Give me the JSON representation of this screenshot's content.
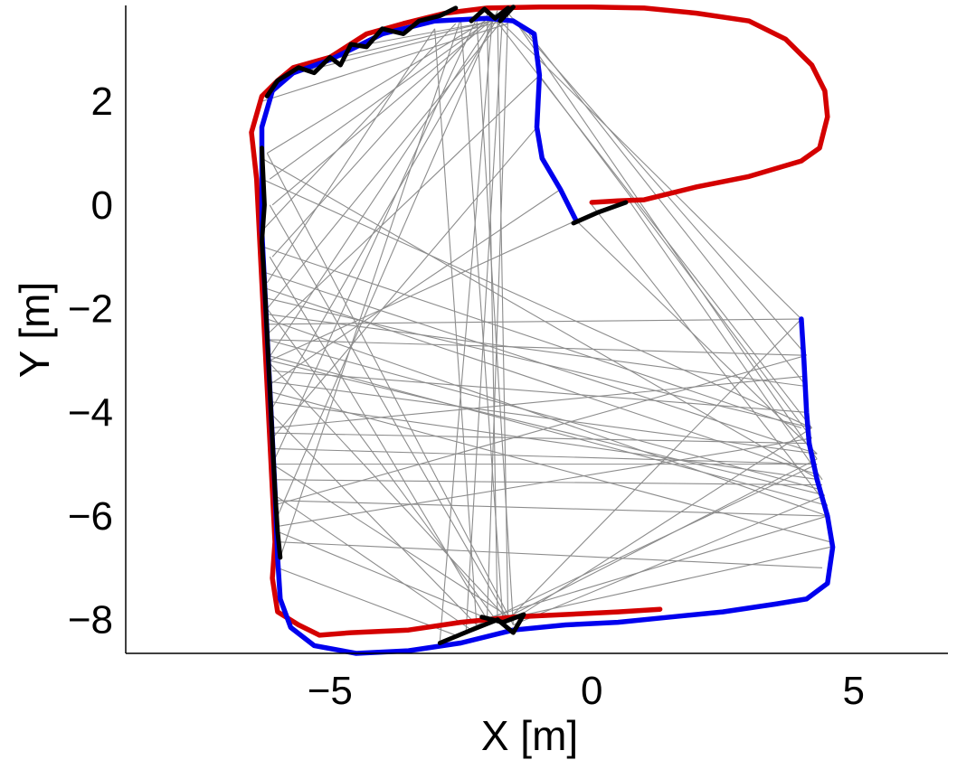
{
  "chart_data": {
    "type": "line",
    "title": "",
    "xlabel": "X [m]",
    "ylabel": "Y [m]",
    "xlim": [
      -8.9,
      6.8
    ],
    "ylim": [
      -8.65,
      3.85
    ],
    "xticks": [
      -5,
      0,
      5
    ],
    "xtick_labels": [
      "−5",
      "0",
      "5"
    ],
    "yticks": [
      -8,
      -6,
      -4,
      -2,
      0,
      2
    ],
    "ytick_labels": [
      "−8",
      "−6",
      "−4",
      "−2",
      "0",
      "2"
    ],
    "grid": false,
    "colors": {
      "red_trajectory": "#d40000",
      "blue_trajectory": "#0000ee",
      "loop_matches": "#000000",
      "correspondences": "#8c8c8c"
    },
    "series": [
      {
        "color": "#d40000",
        "points": [
          [
            1.3,
            -7.8
          ],
          [
            0.5,
            -7.85
          ],
          [
            -0.5,
            -7.9
          ],
          [
            -1.5,
            -7.95
          ],
          [
            -2.5,
            -8.05
          ],
          [
            -3.5,
            -8.2
          ],
          [
            -4.6,
            -8.25
          ],
          [
            -5.2,
            -8.3
          ],
          [
            -5.6,
            -8.1
          ],
          [
            -6.0,
            -7.85
          ],
          [
            -6.1,
            -7.2
          ],
          [
            -6.05,
            -6.5
          ],
          [
            -6.1,
            -5.5
          ],
          [
            -6.15,
            -4.5
          ],
          [
            -6.2,
            -3.5
          ],
          [
            -6.25,
            -2.5
          ],
          [
            -6.3,
            -1.5
          ],
          [
            -6.35,
            -0.5
          ],
          [
            -6.4,
            0.5
          ],
          [
            -6.5,
            1.4
          ],
          [
            -6.3,
            2.1
          ],
          [
            -6.0,
            2.4
          ],
          [
            -5.7,
            2.65
          ],
          [
            -5.0,
            2.85
          ],
          [
            -4.3,
            3.3
          ],
          [
            -3.6,
            3.5
          ],
          [
            -2.8,
            3.7
          ],
          [
            -2.0,
            3.8
          ],
          [
            -1.0,
            3.82
          ],
          [
            0.0,
            3.82
          ],
          [
            1.0,
            3.8
          ],
          [
            2.0,
            3.7
          ],
          [
            3.0,
            3.55
          ],
          [
            3.7,
            3.2
          ],
          [
            4.2,
            2.7
          ],
          [
            4.45,
            2.2
          ],
          [
            4.5,
            1.7
          ],
          [
            4.35,
            1.1
          ],
          [
            4.0,
            0.85
          ],
          [
            3.0,
            0.55
          ],
          [
            2.0,
            0.35
          ],
          [
            1.0,
            0.1
          ],
          [
            0.5,
            0.08
          ],
          [
            0.0,
            0.05
          ]
        ]
      },
      {
        "color": "#0000ee",
        "points": [
          [
            4.0,
            -2.2
          ],
          [
            4.05,
            -3.0
          ],
          [
            4.1,
            -4.0
          ],
          [
            4.15,
            -4.6
          ],
          [
            4.3,
            -5.3
          ],
          [
            4.5,
            -6.0
          ],
          [
            4.6,
            -6.6
          ],
          [
            4.5,
            -7.3
          ],
          [
            4.1,
            -7.6
          ],
          [
            3.5,
            -7.7
          ],
          [
            2.5,
            -7.85
          ],
          [
            1.5,
            -7.95
          ],
          [
            0.5,
            -8.05
          ],
          [
            -0.5,
            -8.1
          ],
          [
            -1.5,
            -8.2
          ],
          [
            -2.5,
            -8.45
          ],
          [
            -3.5,
            -8.6
          ],
          [
            -4.5,
            -8.65
          ],
          [
            -5.3,
            -8.5
          ],
          [
            -5.75,
            -8.15
          ],
          [
            -5.95,
            -7.6
          ],
          [
            -6.0,
            -6.8
          ],
          [
            -6.05,
            -5.5
          ],
          [
            -6.1,
            -4.5
          ],
          [
            -6.15,
            -3.5
          ],
          [
            -6.2,
            -2.5
          ],
          [
            -6.25,
            -1.5
          ],
          [
            -6.3,
            -0.5
          ],
          [
            -6.3,
            0.5
          ],
          [
            -6.3,
            1.5
          ],
          [
            -6.1,
            2.2
          ],
          [
            -5.7,
            2.55
          ],
          [
            -5.0,
            2.8
          ],
          [
            -4.5,
            3.05
          ],
          [
            -4.0,
            3.3
          ],
          [
            -3.0,
            3.55
          ],
          [
            -2.0,
            3.6
          ],
          [
            -1.5,
            3.55
          ],
          [
            -1.1,
            3.3
          ],
          [
            -1.0,
            2.5
          ],
          [
            -1.05,
            1.5
          ],
          [
            -0.95,
            0.9
          ],
          [
            -0.6,
            0.3
          ],
          [
            -0.3,
            -0.3
          ]
        ]
      },
      {
        "color": "#000000",
        "points": [
          [
            -6.3,
            1.1
          ],
          [
            -6.25,
            0.0
          ],
          [
            -6.3,
            -0.7
          ],
          [
            -6.25,
            -1.5
          ],
          [
            -6.2,
            -2.5
          ],
          [
            -6.15,
            -3.5
          ],
          [
            -6.1,
            -4.5
          ],
          [
            -6.05,
            -5.5
          ],
          [
            -6.0,
            -6.3
          ],
          [
            -5.95,
            -6.8
          ]
        ]
      },
      {
        "color": "#000000",
        "points": [
          [
            -6.2,
            2.1
          ],
          [
            -6.0,
            2.4
          ],
          [
            -5.6,
            2.65
          ],
          [
            -5.3,
            2.55
          ],
          [
            -5.0,
            2.85
          ],
          [
            -4.8,
            2.7
          ],
          [
            -4.6,
            3.1
          ],
          [
            -4.3,
            3.05
          ],
          [
            -4.0,
            3.4
          ],
          [
            -3.6,
            3.3
          ],
          [
            -3.3,
            3.55
          ],
          [
            -2.9,
            3.65
          ],
          [
            -2.6,
            3.8
          ]
        ]
      },
      {
        "color": "#000000",
        "points": [
          [
            -2.3,
            3.55
          ],
          [
            -2.05,
            3.78
          ],
          [
            -1.85,
            3.6
          ],
          [
            -1.6,
            3.8
          ],
          [
            -1.75,
            3.55
          ],
          [
            -1.5,
            3.82
          ]
        ]
      },
      {
        "color": "#000000",
        "points": [
          [
            -0.35,
            -0.35
          ],
          [
            0.1,
            -0.15
          ],
          [
            0.65,
            0.05
          ]
        ]
      },
      {
        "color": "#000000",
        "points": [
          [
            -2.9,
            -8.45
          ],
          [
            -2.3,
            -8.2
          ],
          [
            -1.8,
            -8.0
          ],
          [
            -1.5,
            -8.25
          ],
          [
            -1.3,
            -7.9
          ],
          [
            -1.7,
            -8.05
          ],
          [
            -2.1,
            -7.95
          ]
        ]
      }
    ],
    "correspondence_lines": [
      [
        [
          -6.2,
          1.0
        ],
        [
          -1.8,
          3.7
        ]
      ],
      [
        [
          -6.15,
          0.5
        ],
        [
          -1.9,
          3.6
        ]
      ],
      [
        [
          -6.1,
          0.0
        ],
        [
          -1.7,
          3.75
        ]
      ],
      [
        [
          -6.1,
          -1.0
        ],
        [
          -2.0,
          3.6
        ]
      ],
      [
        [
          -6.2,
          -2.0
        ],
        [
          -1.6,
          3.7
        ]
      ],
      [
        [
          -6.2,
          -3.0
        ],
        [
          -1.9,
          3.55
        ]
      ],
      [
        [
          -6.15,
          -4.0
        ],
        [
          -1.75,
          3.7
        ]
      ],
      [
        [
          -6.1,
          -5.0
        ],
        [
          -2.2,
          3.6
        ]
      ],
      [
        [
          -6.0,
          -6.0
        ],
        [
          -1.8,
          3.75
        ]
      ],
      [
        [
          -5.95,
          -6.8
        ],
        [
          -2.5,
          3.6
        ]
      ],
      [
        [
          -6.3,
          -0.5
        ],
        [
          -2.6,
          3.5
        ]
      ],
      [
        [
          -6.2,
          -1.5
        ],
        [
          -3.0,
          3.4
        ]
      ],
      [
        [
          -6.3,
          2.0
        ],
        [
          -1.6,
          3.5
        ]
      ],
      [
        [
          -5.8,
          2.5
        ],
        [
          -1.5,
          3.6
        ]
      ],
      [
        [
          -5.0,
          2.8
        ],
        [
          -1.7,
          3.6
        ]
      ],
      [
        [
          -4.3,
          3.1
        ],
        [
          -1.6,
          3.6
        ]
      ],
      [
        [
          -6.2,
          1.0
        ],
        [
          -1.5,
          -8.1
        ]
      ],
      [
        [
          -6.15,
          0.0
        ],
        [
          -1.6,
          -8.0
        ]
      ],
      [
        [
          -6.15,
          -1.0
        ],
        [
          -2.0,
          -8.0
        ]
      ],
      [
        [
          -6.2,
          -2.0
        ],
        [
          -1.8,
          -8.05
        ]
      ],
      [
        [
          -6.2,
          -3.0
        ],
        [
          -1.6,
          -8.0
        ]
      ],
      [
        [
          -6.15,
          -4.0
        ],
        [
          -2.2,
          -8.1
        ]
      ],
      [
        [
          -6.1,
          -5.0
        ],
        [
          -1.5,
          -8.0
        ]
      ],
      [
        [
          -6.05,
          -5.6
        ],
        [
          -2.3,
          -8.2
        ]
      ],
      [
        [
          -6.0,
          -6.3
        ],
        [
          -1.7,
          -8.1
        ]
      ],
      [
        [
          -6.0,
          -7.0
        ],
        [
          -2.6,
          -8.3
        ]
      ],
      [
        [
          -1.8,
          3.6
        ],
        [
          -1.6,
          -8.0
        ]
      ],
      [
        [
          -2.0,
          3.7
        ],
        [
          -1.8,
          -8.05
        ]
      ],
      [
        [
          -1.7,
          3.75
        ],
        [
          -2.4,
          -8.2
        ]
      ],
      [
        [
          -2.2,
          3.6
        ],
        [
          -1.5,
          -8.1
        ]
      ],
      [
        [
          -1.9,
          3.6
        ],
        [
          -2.9,
          -8.4
        ]
      ],
      [
        [
          -1.6,
          3.7
        ],
        [
          -2.0,
          -8.0
        ]
      ],
      [
        [
          -2.5,
          3.55
        ],
        [
          -1.7,
          -8.0
        ]
      ],
      [
        [
          -3.0,
          3.4
        ],
        [
          -2.2,
          -8.1
        ]
      ],
      [
        [
          -1.8,
          3.6
        ],
        [
          4.0,
          -2.2
        ]
      ],
      [
        [
          -1.6,
          3.7
        ],
        [
          4.1,
          -2.9
        ]
      ],
      [
        [
          -1.9,
          3.65
        ],
        [
          4.2,
          -4.3
        ]
      ],
      [
        [
          -1.5,
          3.6
        ],
        [
          4.3,
          -4.9
        ]
      ],
      [
        [
          -1.2,
          3.3
        ],
        [
          4.1,
          -3.5
        ]
      ],
      [
        [
          -1.0,
          2.5
        ],
        [
          4.2,
          -4.5
        ]
      ],
      [
        [
          0.7,
          0.1
        ],
        [
          4.4,
          -5.3
        ]
      ],
      [
        [
          -0.3,
          -0.3
        ],
        [
          4.3,
          -4.8
        ]
      ],
      [
        [
          0.0,
          0.0
        ],
        [
          4.5,
          -5.8
        ]
      ],
      [
        [
          4.0,
          -2.2
        ],
        [
          -6.2,
          -2.3
        ]
      ],
      [
        [
          4.05,
          -2.9
        ],
        [
          -6.15,
          -2.6
        ]
      ],
      [
        [
          4.1,
          -3.5
        ],
        [
          -6.25,
          -2.1
        ]
      ],
      [
        [
          4.1,
          -4.0
        ],
        [
          -6.1,
          -3.2
        ]
      ],
      [
        [
          4.2,
          -4.3
        ],
        [
          -6.2,
          -1.8
        ]
      ],
      [
        [
          4.2,
          -4.6
        ],
        [
          -6.1,
          -4.4
        ]
      ],
      [
        [
          4.3,
          -4.8
        ],
        [
          -6.25,
          -1.3
        ]
      ],
      [
        [
          4.3,
          -5.0
        ],
        [
          -6.05,
          -5.0
        ]
      ],
      [
        [
          4.35,
          -5.3
        ],
        [
          -6.1,
          -3.8
        ]
      ],
      [
        [
          4.4,
          -5.4
        ],
        [
          -6.05,
          -5.3
        ]
      ],
      [
        [
          4.5,
          -5.8
        ],
        [
          -6.2,
          -2.9
        ]
      ],
      [
        [
          4.5,
          -6.0
        ],
        [
          -6.05,
          -5.7
        ]
      ],
      [
        [
          4.55,
          -6.5
        ],
        [
          -6.15,
          -3.6
        ]
      ],
      [
        [
          4.4,
          -7.0
        ],
        [
          -6.0,
          -6.5
        ]
      ],
      [
        [
          4.0,
          -4.3
        ],
        [
          -6.3,
          -0.8
        ]
      ],
      [
        [
          4.2,
          -4.3
        ],
        [
          -6.3,
          0.5
        ]
      ],
      [
        [
          4.35,
          -5.3
        ],
        [
          -6.3,
          0.9
        ]
      ],
      [
        [
          4.1,
          -3.3
        ],
        [
          -6.1,
          -4.3
        ]
      ],
      [
        [
          4.3,
          -5.0
        ],
        [
          -6.1,
          -4.7
        ]
      ],
      [
        [
          4.3,
          -4.8
        ],
        [
          -6.2,
          -3.4
        ]
      ],
      [
        [
          4.45,
          -5.6
        ],
        [
          -6.15,
          -3.0
        ]
      ],
      [
        [
          4.1,
          -2.9
        ],
        [
          -6.1,
          -5.8
        ]
      ],
      [
        [
          4.2,
          -4.5
        ],
        [
          -6.0,
          -6.2
        ]
      ],
      [
        [
          4.5,
          -6.0
        ],
        [
          -6.2,
          -2.2
        ]
      ],
      [
        [
          4.3,
          -5.2
        ],
        [
          -6.25,
          -1.6
        ]
      ],
      [
        [
          4.4,
          -5.5
        ],
        [
          -6.2,
          -2.6
        ]
      ],
      [
        [
          4.2,
          -4.3
        ],
        [
          -1.5,
          -8.0
        ]
      ],
      [
        [
          4.3,
          -4.9
        ],
        [
          -1.8,
          -8.05
        ]
      ],
      [
        [
          4.45,
          -5.6
        ],
        [
          -1.5,
          -8.1
        ]
      ],
      [
        [
          4.5,
          -6.0
        ],
        [
          -2.1,
          -8.0
        ]
      ],
      [
        [
          4.3,
          -5.0
        ],
        [
          -2.8,
          -8.4
        ]
      ],
      [
        [
          4.0,
          -2.2
        ],
        [
          -1.6,
          -8.0
        ]
      ],
      [
        [
          4.55,
          -6.6
        ],
        [
          -1.7,
          -8.0
        ]
      ],
      [
        [
          -6.2,
          -2.5
        ],
        [
          -1.0,
          2.5
        ]
      ],
      [
        [
          -6.2,
          -3.5
        ],
        [
          -0.6,
          0.3
        ]
      ],
      [
        [
          -6.1,
          -4.5
        ],
        [
          -1.05,
          1.5
        ]
      ],
      [
        [
          -6.15,
          -3.0
        ],
        [
          -0.3,
          -0.3
        ]
      ]
    ]
  }
}
